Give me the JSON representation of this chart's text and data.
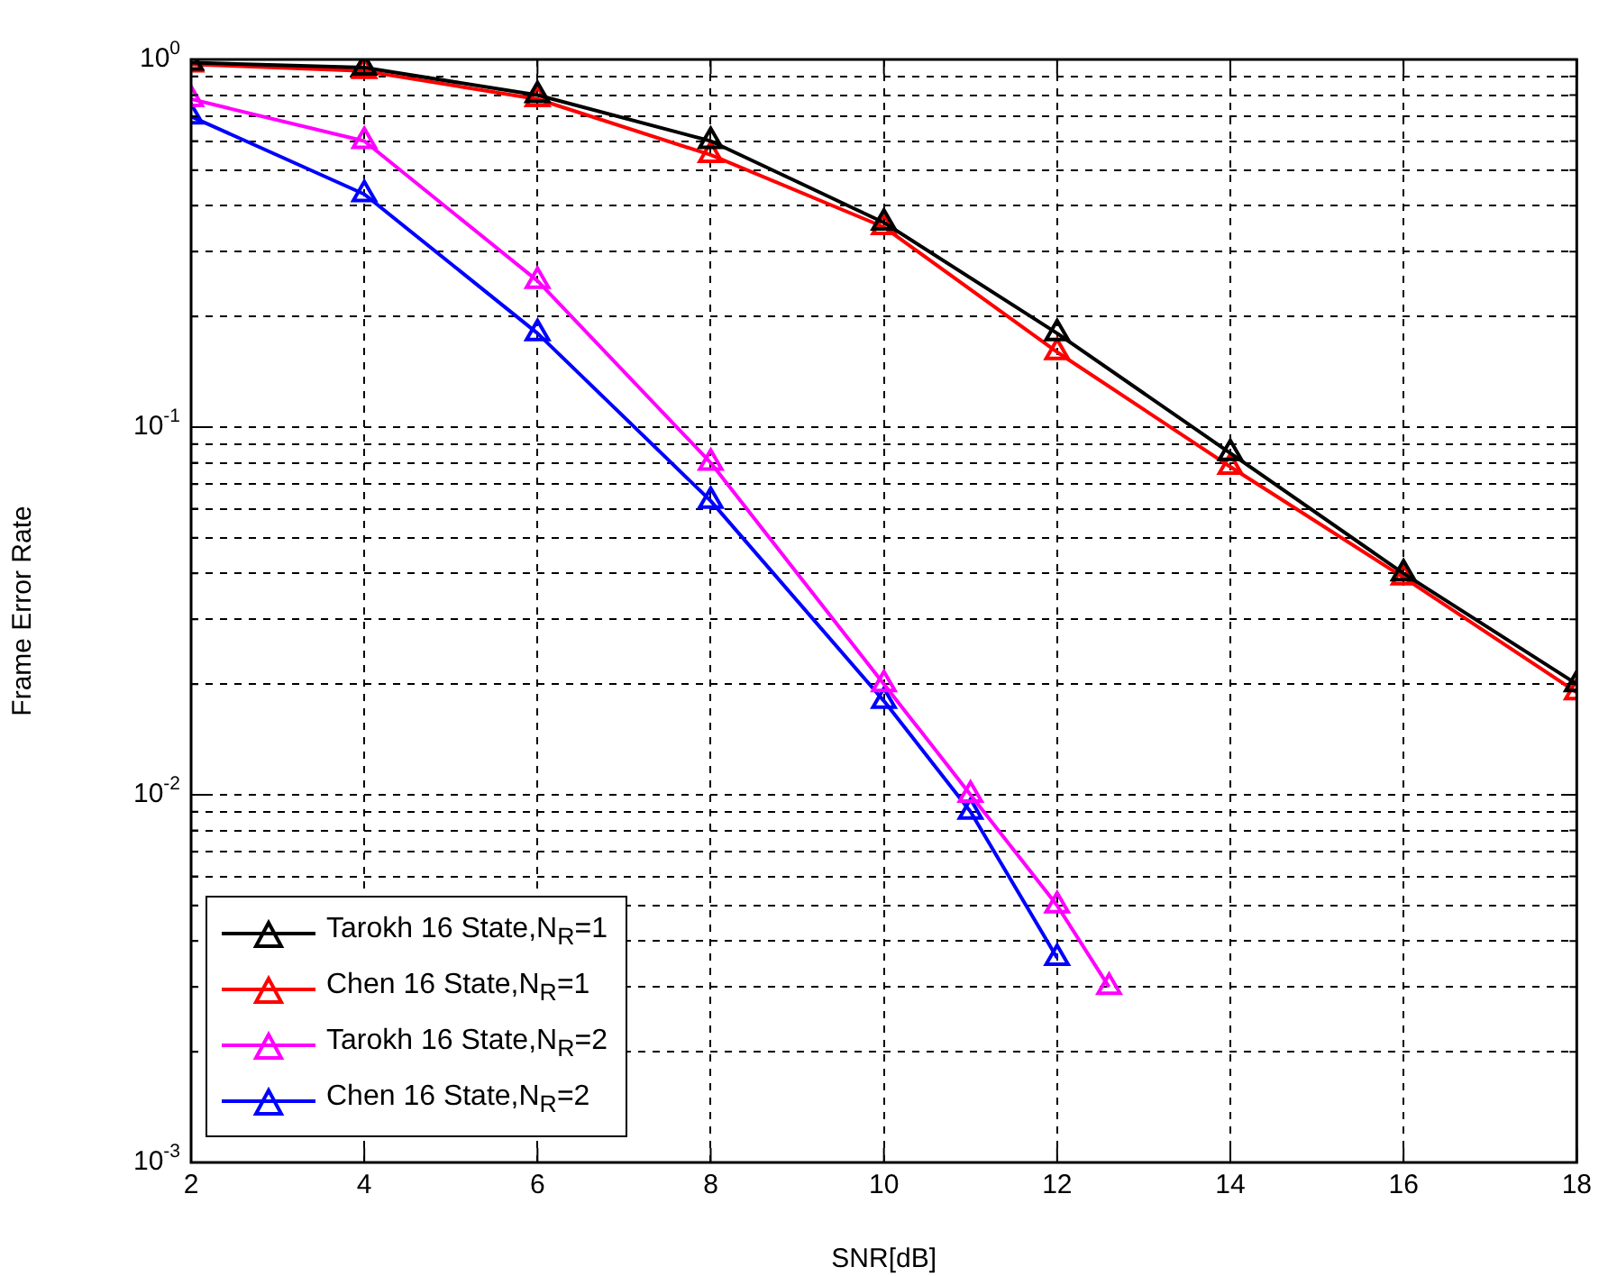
{
  "chart_data": {
    "type": "line",
    "xlabel": "SNR[dB]",
    "ylabel": "Frame Error Rate",
    "log": "y",
    "grid": true,
    "legend": "bottom left",
    "line_style": "solid",
    "xlim": [
      2,
      18
    ],
    "xticks": [
      2,
      4,
      6,
      8,
      10,
      12,
      14,
      16,
      18
    ],
    "ylim": [
      0.001,
      1
    ],
    "yticks": [
      {
        "value": 0.001,
        "label": "10$^{-3}$"
      },
      {
        "value": 0.002,
        "label": null
      },
      {
        "value": 0.003,
        "label": null
      },
      {
        "value": 0.004,
        "label": null
      },
      {
        "value": 0.005,
        "label": null
      },
      {
        "value": 0.006,
        "label": null
      },
      {
        "value": 0.007,
        "label": null
      },
      {
        "value": 0.008,
        "label": null
      },
      {
        "value": 0.009,
        "label": null
      },
      {
        "value": 0.01,
        "label": "10$^{-2}$"
      },
      {
        "value": 0.02,
        "label": null
      },
      {
        "value": 0.03,
        "label": null
      },
      {
        "value": 0.04,
        "label": null
      },
      {
        "value": 0.05,
        "label": null
      },
      {
        "value": 0.06,
        "label": null
      },
      {
        "value": 0.07,
        "label": null
      },
      {
        "value": 0.08,
        "label": null
      },
      {
        "value": 0.09,
        "label": null
      },
      {
        "value": 0.1,
        "label": "10$^{-1}$"
      },
      {
        "value": 0.2,
        "label": null
      },
      {
        "value": 0.3,
        "label": null
      },
      {
        "value": 0.4,
        "label": null
      },
      {
        "value": 0.5,
        "label": null
      },
      {
        "value": 0.6,
        "label": null
      },
      {
        "value": 0.7,
        "label": null
      },
      {
        "value": 0.8,
        "label": null
      },
      {
        "value": 0.9,
        "label": null
      },
      {
        "value": 1,
        "label": "10$^{0}$"
      }
    ],
    "series": [
      {
        "name": "Tarokh 16 State,N$_{R}$=1",
        "color": "#000000",
        "marker": "triangle",
        "x": [
          2,
          4,
          6,
          8,
          10,
          12,
          14,
          16,
          18
        ],
        "values": [
          0.98,
          0.95,
          0.8,
          0.6,
          0.36,
          0.18,
          0.085,
          0.04,
          0.02
        ]
      },
      {
        "name": "Chen 16 State,N$_{R}$=1",
        "color": "#ff0000",
        "marker": "triangle",
        "x": [
          2,
          4,
          6,
          8,
          10,
          12,
          14,
          16,
          18
        ],
        "values": [
          0.97,
          0.93,
          0.78,
          0.55,
          0.35,
          0.16,
          0.078,
          0.039,
          0.019
        ]
      },
      {
        "name": "Tarokh 16 State,N$_{R}$=2",
        "color": "#ff00ff",
        "marker": "triangle",
        "x": [
          2,
          4,
          6,
          8,
          10,
          11,
          12,
          12.6
        ],
        "values": [
          0.78,
          0.6,
          0.25,
          0.08,
          0.02,
          0.01,
          0.005,
          0.003
        ]
      },
      {
        "name": "Chen 16 State,N$_{R}$=2",
        "color": "#0000ff",
        "marker": "triangle",
        "x": [
          2,
          4,
          6,
          8,
          10,
          11,
          12
        ],
        "values": [
          0.7,
          0.43,
          0.18,
          0.063,
          0.018,
          0.009,
          0.0036
        ]
      }
    ]
  }
}
